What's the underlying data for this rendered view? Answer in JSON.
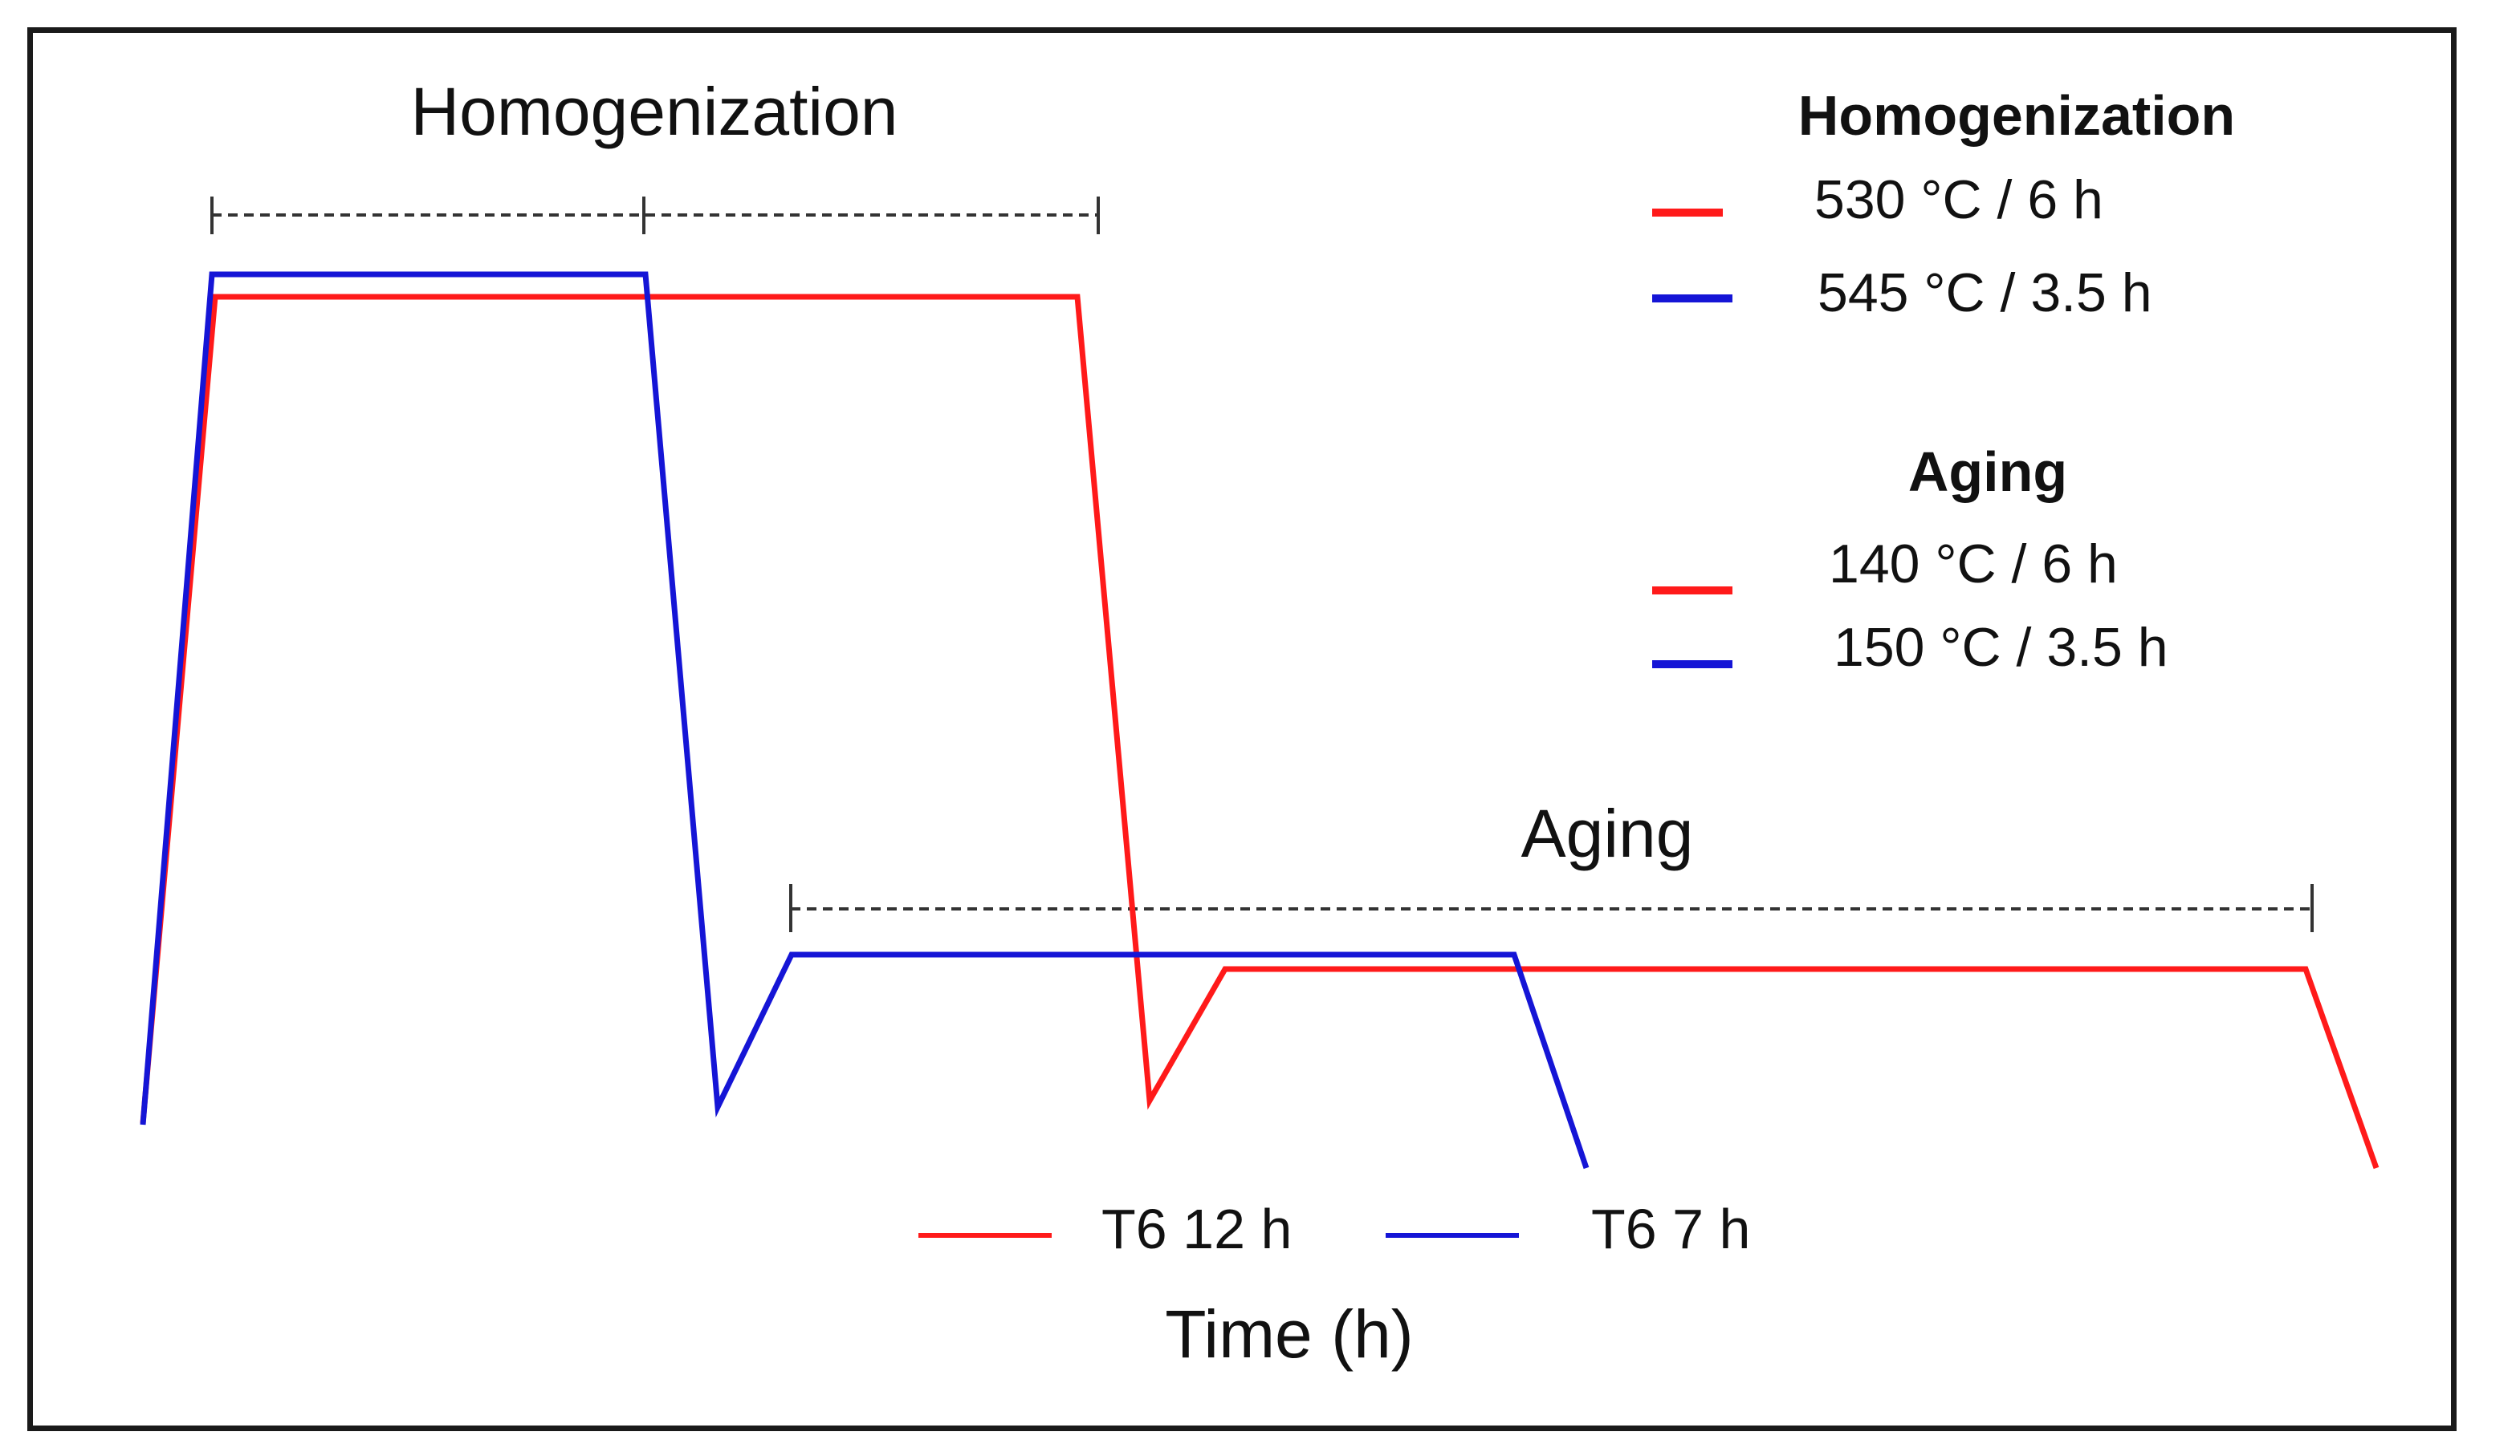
{
  "diagram": {
    "section_labels": {
      "homogenization": "Homogenization",
      "aging": "Aging"
    },
    "axis": {
      "x_label": "Time (h)"
    },
    "legend_top": {
      "homogenization_title": "Homogenization",
      "homogenization_items": [
        {
          "label": "530 °C / 6 h",
          "color": "#ff1a1a"
        },
        {
          "label": "545 °C / 3.5 h",
          "color": "#1515d6"
        }
      ],
      "aging_title": "Aging",
      "aging_items": [
        {
          "label": "140 °C / 6 h",
          "color": "#ff1a1a"
        },
        {
          "label": "150 °C / 3.5 h",
          "color": "#1515d6"
        }
      ]
    },
    "legend_bottom": [
      {
        "label": "T6 12 h",
        "color": "#ff1a1a"
      },
      {
        "label": "T6 7 h",
        "color": "#1515d6"
      }
    ],
    "colors": {
      "red_series": "#ff1a1a",
      "blue_series": "#1515d6",
      "dimension_line": "#333333",
      "frame": "#1a1a1a"
    }
  }
}
